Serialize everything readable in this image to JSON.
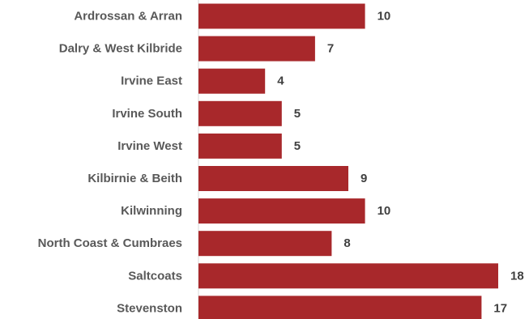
{
  "chart_data": {
    "type": "bar",
    "orientation": "horizontal",
    "categories": [
      "Ardrossan & Arran",
      "Dalry & West Kilbride",
      "Irvine East",
      "Irvine South",
      "Irvine West",
      "Kilbirnie & Beith",
      "Kilwinning",
      "North Coast & Cumbraes",
      "Saltcoats",
      "Stevenston"
    ],
    "values": [
      10,
      7,
      4,
      5,
      5,
      9,
      10,
      8,
      18,
      17
    ],
    "value_labels": [
      "10",
      "7",
      "4",
      "5",
      "5",
      "9",
      "10",
      "8",
      "18",
      "17"
    ],
    "bar_color": "#a8282b",
    "axis_color": "#d9d9d9",
    "xlim": [
      0,
      18
    ],
    "grid": false,
    "legend": "none"
  }
}
